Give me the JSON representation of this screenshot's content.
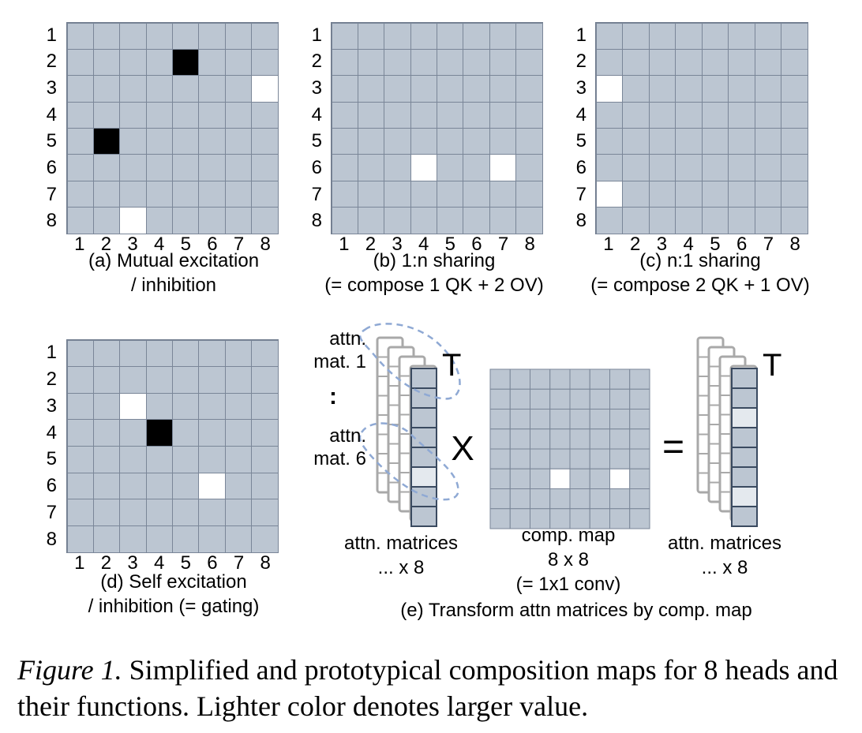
{
  "colors": {
    "base": "#bcc6d2",
    "low": "#000000",
    "high": "#ffffff",
    "mid": "#e4e9ee",
    "line": "#7a8698",
    "stack_outline": "#a9a9a9",
    "column_border": "#3a4a60",
    "dashed": "#8fa9d4"
  },
  "panels": [
    {
      "id": "a",
      "row_labels": [
        "1",
        "2",
        "3",
        "4",
        "5",
        "6",
        "7",
        "8"
      ],
      "col_labels": [
        "1",
        "2",
        "3",
        "4",
        "5",
        "6",
        "7",
        "8"
      ],
      "caption_lines": [
        "(a) Mutual excitation",
        "/ inhibition"
      ],
      "map": [
        [
          0,
          0,
          0,
          0,
          0,
          0,
          0,
          0
        ],
        [
          0,
          0,
          0,
          0,
          -1,
          0,
          0,
          0
        ],
        [
          0,
          0,
          0,
          0,
          0,
          0,
          0,
          1
        ],
        [
          0,
          0,
          0,
          0,
          0,
          0,
          0,
          0
        ],
        [
          0,
          -1,
          0,
          0,
          0,
          0,
          0,
          0
        ],
        [
          0,
          0,
          0,
          0,
          0,
          0,
          0,
          0
        ],
        [
          0,
          0,
          0,
          0,
          0,
          0,
          0,
          0
        ],
        [
          0,
          0,
          1,
          0,
          0,
          0,
          0,
          0
        ]
      ]
    },
    {
      "id": "b",
      "row_labels": [
        "1",
        "2",
        "3",
        "4",
        "5",
        "6",
        "7",
        "8"
      ],
      "col_labels": [
        "1",
        "2",
        "3",
        "4",
        "5",
        "6",
        "7",
        "8"
      ],
      "caption_lines": [
        "(b) 1:n sharing",
        "(= compose 1 QK + 2 OV)"
      ],
      "map": [
        [
          0,
          0,
          0,
          0,
          0,
          0,
          0,
          0
        ],
        [
          0,
          0,
          0,
          0,
          0,
          0,
          0,
          0
        ],
        [
          0,
          0,
          0,
          0,
          0,
          0,
          0,
          0
        ],
        [
          0,
          0,
          0,
          0,
          0,
          0,
          0,
          0
        ],
        [
          0,
          0,
          0,
          0,
          0,
          0,
          0,
          0
        ],
        [
          0,
          0,
          0,
          1,
          0,
          0,
          1,
          0
        ],
        [
          0,
          0,
          0,
          0,
          0,
          0,
          0,
          0
        ],
        [
          0,
          0,
          0,
          0,
          0,
          0,
          0,
          0
        ]
      ]
    },
    {
      "id": "c",
      "row_labels": [
        "1",
        "2",
        "3",
        "4",
        "5",
        "6",
        "7",
        "8"
      ],
      "col_labels": [
        "1",
        "2",
        "3",
        "4",
        "5",
        "6",
        "7",
        "8"
      ],
      "caption_lines": [
        "(c) n:1 sharing",
        "(= compose 2 QK + 1 OV)"
      ],
      "map": [
        [
          0,
          0,
          0,
          0,
          0,
          0,
          0,
          0
        ],
        [
          0,
          0,
          0,
          0,
          0,
          0,
          0,
          0
        ],
        [
          1,
          0,
          0,
          0,
          0,
          0,
          0,
          0
        ],
        [
          0,
          0,
          0,
          0,
          0,
          0,
          0,
          0
        ],
        [
          0,
          0,
          0,
          0,
          0,
          0,
          0,
          0
        ],
        [
          0,
          0,
          0,
          0,
          0,
          0,
          0,
          0
        ],
        [
          1,
          0,
          0,
          0,
          0,
          0,
          0,
          0
        ],
        [
          0,
          0,
          0,
          0,
          0,
          0,
          0,
          0
        ]
      ]
    },
    {
      "id": "d",
      "row_labels": [
        "1",
        "2",
        "3",
        "4",
        "5",
        "6",
        "7",
        "8"
      ],
      "col_labels": [
        "1",
        "2",
        "3",
        "4",
        "5",
        "6",
        "7",
        "8"
      ],
      "caption_lines": [
        "(d) Self excitation",
        "/ inhibition (= gating)"
      ],
      "map": [
        [
          0,
          0,
          0,
          0,
          0,
          0,
          0,
          0
        ],
        [
          0,
          0,
          0,
          0,
          0,
          0,
          0,
          0
        ],
        [
          0,
          0,
          1,
          0,
          0,
          0,
          0,
          0
        ],
        [
          0,
          0,
          0,
          -1,
          0,
          0,
          0,
          0
        ],
        [
          0,
          0,
          0,
          0,
          0,
          0,
          0,
          0
        ],
        [
          0,
          0,
          0,
          0,
          0,
          1,
          0,
          0
        ],
        [
          0,
          0,
          0,
          0,
          0,
          0,
          0,
          0
        ],
        [
          0,
          0,
          0,
          0,
          0,
          0,
          0,
          0
        ]
      ]
    }
  ],
  "panel_e": {
    "label_attn_mat_1": [
      "attn.",
      "mat. 1"
    ],
    "label_dots": ":",
    "label_attn_mat_6": [
      "attn.",
      "mat. 6"
    ],
    "transpose": "T",
    "times": "X",
    "equals": "=",
    "left_caption": [
      "attn. matrices",
      "... x 8"
    ],
    "comp_caption": [
      "comp. map",
      "8 x 8",
      "(= 1x1 conv)"
    ],
    "right_caption": [
      "attn. matrices",
      "... x 8"
    ],
    "main_caption": "(e) Transform attn matrices by comp. map",
    "left_column": [
      0,
      0,
      0,
      0,
      0,
      "mid",
      0,
      0
    ],
    "right_column": [
      0,
      0,
      "mid",
      0,
      0,
      0,
      "mid",
      0
    ],
    "comp_map": [
      [
        0,
        0,
        0,
        0,
        0,
        0,
        0,
        0
      ],
      [
        0,
        0,
        0,
        0,
        0,
        0,
        0,
        0
      ],
      [
        0,
        0,
        0,
        0,
        0,
        0,
        0,
        0
      ],
      [
        0,
        0,
        0,
        0,
        0,
        0,
        0,
        0
      ],
      [
        0,
        0,
        0,
        0,
        0,
        0,
        0,
        0
      ],
      [
        0,
        0,
        0,
        1,
        0,
        0,
        1,
        0
      ],
      [
        0,
        0,
        0,
        0,
        0,
        0,
        0,
        0
      ],
      [
        0,
        0,
        0,
        0,
        0,
        0,
        0,
        0
      ]
    ]
  },
  "figure_caption": {
    "lead": "Figure 1.",
    "text": " Simplified and prototypical composition maps for 8 heads and their functions. Lighter color denotes larger value."
  }
}
